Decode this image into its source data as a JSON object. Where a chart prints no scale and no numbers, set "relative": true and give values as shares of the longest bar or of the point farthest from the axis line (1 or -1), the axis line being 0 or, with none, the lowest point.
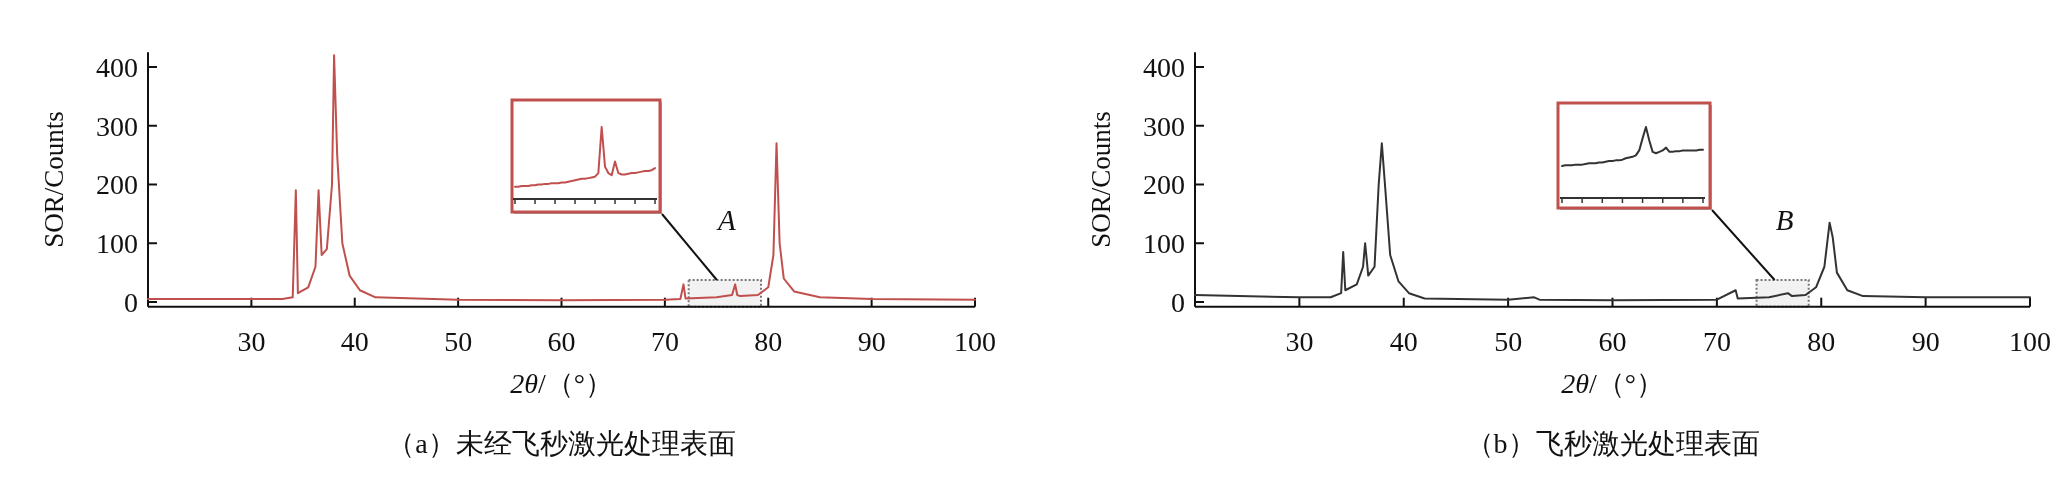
{
  "chart_data": [
    {
      "type": "line",
      "title": "（a）未经飞秒激光处理表面",
      "xlabel": "*2θ*/（°）",
      "ylabel": "SOR/Counts",
      "xlim": [
        20,
        100
      ],
      "xticks": [
        30,
        40,
        50,
        60,
        70,
        80,
        90,
        100
      ],
      "ylim": [
        -8,
        425
      ],
      "yticks": [
        0,
        100,
        200,
        300,
        400
      ],
      "bands": [
        {
          "axis": "x",
          "from": 72.3,
          "to": 79.3,
          "label": "A"
        }
      ],
      "series": [
        {
          "color": "#c0504d",
          "x": [
            20,
            33,
            34.0,
            34.3,
            34.5,
            35.5,
            36.2,
            36.5,
            36.8,
            37.3,
            37.8,
            38.0,
            38.3,
            38.8,
            39.5,
            40.5,
            42,
            50,
            60,
            70,
            71.5,
            71.8,
            72.0,
            75,
            76.5,
            76.8,
            77.0,
            77.3,
            79,
            80,
            80.5,
            80.8,
            81.1,
            81.5,
            82.5,
            85,
            90,
            100
          ],
          "values": [
            5,
            5,
            8,
            190,
            15,
            25,
            60,
            190,
            80,
            90,
            200,
            420,
            250,
            100,
            45,
            20,
            8,
            4,
            3,
            4,
            5,
            30,
            6,
            8,
            12,
            30,
            12,
            10,
            12,
            25,
            80,
            270,
            100,
            40,
            18,
            8,
            5,
            4
          ]
        }
      ]
    },
    {
      "type": "line",
      "relative": true,
      "categories": [
        null,
        null,
        null,
        null,
        null,
        null,
        null,
        null,
        null,
        null,
        null,
        null,
        null,
        null,
        null,
        null,
        null,
        null,
        null,
        null,
        null,
        null,
        null,
        null,
        null,
        null,
        null,
        null,
        null,
        null,
        null,
        null,
        null,
        null,
        null,
        null,
        null,
        null,
        null,
        null,
        null,
        null,
        null
      ],
      "series": [
        {
          "color": "#c0504d",
          "values": [
            0.17,
            0.17,
            0.18,
            0.18,
            0.18,
            0.19,
            0.19,
            0.2,
            0.2,
            0.21,
            0.21,
            0.22,
            0.22,
            0.22,
            0.23,
            0.23,
            0.24,
            0.25,
            0.26,
            0.27,
            0.28,
            0.28,
            0.29,
            0.3,
            0.31,
            0.36,
            1,
            0.45,
            0.36,
            0.33,
            0.52,
            0.36,
            0.34,
            0.34,
            0.35,
            0.36,
            0.36,
            0.37,
            0.38,
            0.39,
            0.39,
            0.4,
            0.43
          ]
        }
      ]
    },
    {
      "type": "line",
      "title": "（b）飞秒激光处理表面",
      "xlabel": "*2θ*/（°）",
      "ylabel": "SOR/Counts",
      "xlim": [
        20,
        100
      ],
      "xticks": [
        30,
        40,
        50,
        60,
        70,
        80,
        90,
        100
      ],
      "ylim": [
        -8,
        425
      ],
      "yticks": [
        0,
        100,
        200,
        300,
        400
      ],
      "bands": [
        {
          "axis": "x",
          "from": 73.8,
          "to": 78.8,
          "label": "B"
        }
      ],
      "series": [
        {
          "color": "#333333",
          "x": [
            20,
            30,
            33,
            34.0,
            34.2,
            34.4,
            35.5,
            36.1,
            36.3,
            36.6,
            37.2,
            37.6,
            37.9,
            38.2,
            38.7,
            39.5,
            40.5,
            42,
            50,
            52.5,
            53,
            60,
            70,
            71.8,
            72.0,
            75,
            76.8,
            77.2,
            78.5,
            79.5,
            80.3,
            80.8,
            81.1,
            81.5,
            82.5,
            84,
            90,
            100
          ],
          "values": [
            12,
            8,
            8,
            15,
            85,
            20,
            30,
            60,
            100,
            45,
            60,
            200,
            270,
            200,
            80,
            35,
            15,
            6,
            4,
            8,
            4,
            3,
            4,
            20,
            6,
            8,
            15,
            10,
            12,
            25,
            60,
            135,
            110,
            50,
            20,
            10,
            8,
            8
          ]
        }
      ]
    },
    {
      "type": "line",
      "relative": true,
      "categories": [
        null,
        null,
        null,
        null,
        null,
        null,
        null,
        null,
        null,
        null,
        null,
        null,
        null,
        null,
        null,
        null,
        null,
        null,
        null,
        null,
        null,
        null,
        null,
        null,
        null,
        null,
        null,
        null,
        null,
        null,
        null,
        null,
        null,
        null,
        null,
        null,
        null,
        null,
        null,
        null,
        null,
        null,
        null
      ],
      "series": [
        {
          "color": "#333333",
          "values": [
            0.45,
            0.46,
            0.46,
            0.46,
            0.47,
            0.47,
            0.47,
            0.48,
            0.49,
            0.49,
            0.49,
            0.5,
            0.5,
            0.51,
            0.52,
            0.52,
            0.53,
            0.53,
            0.54,
            0.56,
            0.57,
            0.58,
            0.6,
            0.67,
            0.84,
            1,
            0.81,
            0.65,
            0.63,
            0.65,
            0.67,
            0.71,
            0.65,
            0.65,
            0.66,
            0.66,
            0.67,
            0.67,
            0.67,
            0.67,
            0.67,
            0.68,
            0.68
          ]
        }
      ]
    }
  ]
}
